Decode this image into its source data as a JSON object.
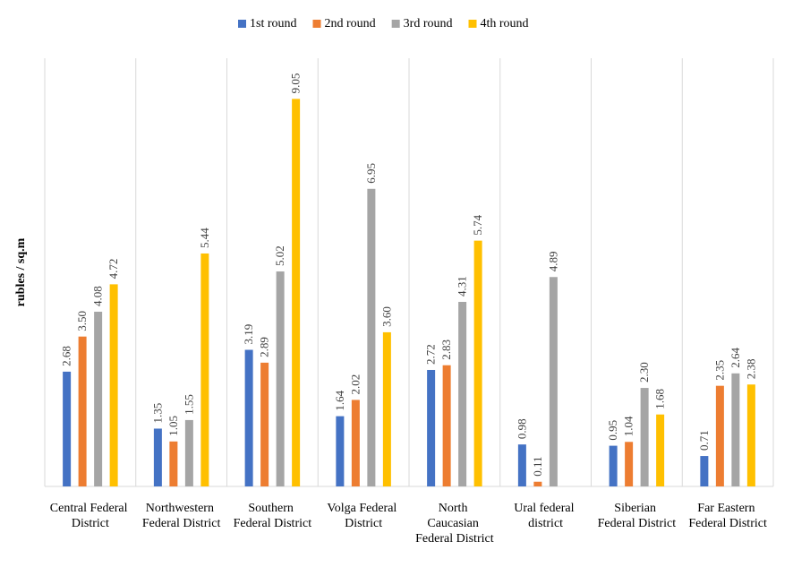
{
  "chart_data": {
    "type": "bar",
    "y_label": "rubles / sq.m",
    "categories": [
      "Central Federal District",
      "Northwestern Federal District",
      "Southern Federal District",
      "Volga Federal District",
      "North Caucasian Federal District",
      "Ural federal district",
      "Siberian Federal District",
      "Far Eastern Federal District"
    ],
    "series": [
      {
        "name": "1st round",
        "color": "#4472c4",
        "values": [
          2.68,
          1.35,
          3.19,
          1.64,
          2.72,
          0.98,
          0.95,
          0.71
        ],
        "value_labels": [
          "2.68",
          "1.35",
          "3.19",
          "1.64",
          "2.72",
          "0.98",
          "0.95",
          "0.71"
        ]
      },
      {
        "name": "2nd round",
        "color": "#ed7d31",
        "values": [
          3.5,
          1.05,
          2.89,
          2.02,
          2.83,
          0.11,
          1.04,
          2.35
        ],
        "value_labels": [
          "3.50",
          "1.05",
          "2.89",
          "2.02",
          "2.83",
          "0.11",
          "1.04",
          "2.35"
        ]
      },
      {
        "name": "3rd round",
        "color": "#a5a5a5",
        "values": [
          4.08,
          1.55,
          5.02,
          6.95,
          4.31,
          4.89,
          2.3,
          2.64
        ],
        "value_labels": [
          "4.08",
          "1.55",
          "5.02",
          "6.95",
          "4.31",
          "4.89",
          "2.30",
          "2.64"
        ]
      },
      {
        "name": "4th round",
        "color": "#ffc000",
        "values": [
          4.72,
          5.44,
          9.05,
          3.6,
          5.74,
          null,
          1.68,
          2.38
        ],
        "value_labels": [
          "4.72",
          "5.44",
          "9.05",
          "3.60",
          "5.74",
          null,
          "1.68",
          "2.38"
        ]
      }
    ],
    "ylim": [
      0,
      10
    ]
  }
}
